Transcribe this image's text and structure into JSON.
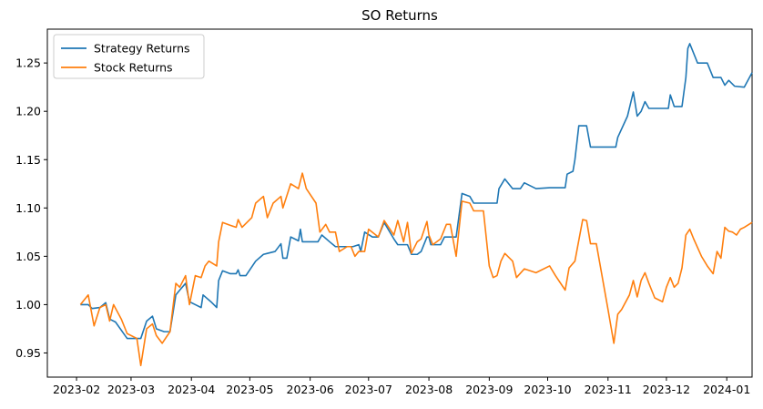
{
  "chart_data": {
    "type": "line",
    "title": "SO Returns",
    "xlabel": "",
    "ylabel": "",
    "x_range": [
      "2023-01-17",
      "2024-01-14"
    ],
    "ylim": [
      0.925,
      1.285
    ],
    "grid": false,
    "legend_position": "top-left",
    "x_ticks": [
      "2023-02",
      "2023-03",
      "2023-04",
      "2023-05",
      "2023-06",
      "2023-07",
      "2023-08",
      "2023-09",
      "2023-10",
      "2023-11",
      "2023-12",
      "2024-01"
    ],
    "y_ticks": [
      0.95,
      1.0,
      1.05,
      1.1,
      1.15,
      1.2,
      1.25
    ],
    "y_tick_labels": [
      "0.95",
      "1.00",
      "1.05",
      "1.10",
      "1.15",
      "1.20",
      "1.25"
    ],
    "series": [
      {
        "name": "Strategy Returns",
        "color": "#1f77b4",
        "points": [
          [
            "2023-02-03",
            1.0
          ],
          [
            "2023-02-07",
            1.0
          ],
          [
            "2023-02-09",
            0.996
          ],
          [
            "2023-02-13",
            0.997
          ],
          [
            "2023-02-16",
            1.002
          ],
          [
            "2023-02-18",
            0.985
          ],
          [
            "2023-02-21",
            0.982
          ],
          [
            "2023-02-27",
            0.965
          ],
          [
            "2023-03-06",
            0.965
          ],
          [
            "2023-03-09",
            0.983
          ],
          [
            "2023-03-12",
            0.988
          ],
          [
            "2023-03-14",
            0.975
          ],
          [
            "2023-03-18",
            0.972
          ],
          [
            "2023-03-21",
            0.972
          ],
          [
            "2023-03-24",
            1.01
          ],
          [
            "2023-03-26",
            1.015
          ],
          [
            "2023-03-29",
            1.022
          ],
          [
            "2023-03-31",
            1.003
          ],
          [
            "2023-04-03",
            1.0
          ],
          [
            "2023-04-06",
            0.997
          ],
          [
            "2023-04-07",
            1.01
          ],
          [
            "2023-04-11",
            1.003
          ],
          [
            "2023-04-14",
            0.997
          ],
          [
            "2023-04-15",
            1.025
          ],
          [
            "2023-04-17",
            1.035
          ],
          [
            "2023-04-21",
            1.032
          ],
          [
            "2023-04-24",
            1.032
          ],
          [
            "2023-04-25",
            1.036
          ],
          [
            "2023-04-26",
            1.03
          ],
          [
            "2023-04-29",
            1.03
          ],
          [
            "2023-05-04",
            1.045
          ],
          [
            "2023-05-08",
            1.052
          ],
          [
            "2023-05-10",
            1.053
          ],
          [
            "2023-05-14",
            1.055
          ],
          [
            "2023-05-17",
            1.063
          ],
          [
            "2023-05-18",
            1.048
          ],
          [
            "2023-05-20",
            1.048
          ],
          [
            "2023-05-22",
            1.07
          ],
          [
            "2023-05-26",
            1.066
          ],
          [
            "2023-05-27",
            1.078
          ],
          [
            "2023-05-28",
            1.065
          ],
          [
            "2023-06-05",
            1.065
          ],
          [
            "2023-06-07",
            1.072
          ],
          [
            "2023-06-11",
            1.065
          ],
          [
            "2023-06-14",
            1.06
          ],
          [
            "2023-06-23",
            1.06
          ],
          [
            "2023-06-26",
            1.062
          ],
          [
            "2023-06-27",
            1.055
          ],
          [
            "2023-06-28",
            1.065
          ],
          [
            "2023-06-29",
            1.075
          ],
          [
            "2023-07-03",
            1.07
          ],
          [
            "2023-07-06",
            1.07
          ],
          [
            "2023-07-09",
            1.085
          ],
          [
            "2023-07-14",
            1.068
          ],
          [
            "2023-07-16",
            1.062
          ],
          [
            "2023-07-21",
            1.062
          ],
          [
            "2023-07-23",
            1.052
          ],
          [
            "2023-07-26",
            1.052
          ],
          [
            "2023-07-28",
            1.055
          ],
          [
            "2023-07-31",
            1.07
          ],
          [
            "2023-08-01",
            1.07
          ],
          [
            "2023-08-02",
            1.062
          ],
          [
            "2023-08-07",
            1.062
          ],
          [
            "2023-08-09",
            1.07
          ],
          [
            "2023-08-15",
            1.07
          ],
          [
            "2023-08-18",
            1.115
          ],
          [
            "2023-08-22",
            1.112
          ],
          [
            "2023-08-24",
            1.105
          ],
          [
            "2023-09-05",
            1.105
          ],
          [
            "2023-09-06",
            1.12
          ],
          [
            "2023-09-09",
            1.13
          ],
          [
            "2023-09-13",
            1.12
          ],
          [
            "2023-09-17",
            1.12
          ],
          [
            "2023-09-19",
            1.126
          ],
          [
            "2023-09-25",
            1.12
          ],
          [
            "2023-10-02",
            1.121
          ],
          [
            "2023-10-10",
            1.121
          ],
          [
            "2023-10-11",
            1.135
          ],
          [
            "2023-10-14",
            1.138
          ],
          [
            "2023-10-15",
            1.15
          ],
          [
            "2023-10-17",
            1.185
          ],
          [
            "2023-10-21",
            1.185
          ],
          [
            "2023-10-23",
            1.163
          ],
          [
            "2023-11-05",
            1.163
          ],
          [
            "2023-11-06",
            1.173
          ],
          [
            "2023-11-11",
            1.195
          ],
          [
            "2023-11-14",
            1.22
          ],
          [
            "2023-11-16",
            1.195
          ],
          [
            "2023-11-18",
            1.2
          ],
          [
            "2023-11-20",
            1.21
          ],
          [
            "2023-11-22",
            1.203
          ],
          [
            "2023-12-02",
            1.203
          ],
          [
            "2023-12-03",
            1.217
          ],
          [
            "2023-12-05",
            1.205
          ],
          [
            "2023-12-09",
            1.205
          ],
          [
            "2023-12-11",
            1.235
          ],
          [
            "2023-12-12",
            1.265
          ],
          [
            "2023-12-13",
            1.27
          ],
          [
            "2023-12-17",
            1.25
          ],
          [
            "2023-12-22",
            1.25
          ],
          [
            "2023-12-25",
            1.235
          ],
          [
            "2023-12-29",
            1.235
          ],
          [
            "2023-12-31",
            1.227
          ],
          [
            "2024-01-02",
            1.232
          ],
          [
            "2024-01-05",
            1.226
          ],
          [
            "2024-01-10",
            1.225
          ],
          [
            "2024-01-14",
            1.24
          ]
        ]
      },
      {
        "name": "Stock Returns",
        "color": "#ff7f0e",
        "points": [
          [
            "2023-02-03",
            1.0
          ],
          [
            "2023-02-07",
            1.01
          ],
          [
            "2023-02-10",
            0.978
          ],
          [
            "2023-02-13",
            0.997
          ],
          [
            "2023-02-16",
            1.0
          ],
          [
            "2023-02-18",
            0.983
          ],
          [
            "2023-02-20",
            1.0
          ],
          [
            "2023-02-24",
            0.985
          ],
          [
            "2023-02-27",
            0.97
          ],
          [
            "2023-03-04",
            0.965
          ],
          [
            "2023-03-06",
            0.937
          ],
          [
            "2023-03-09",
            0.975
          ],
          [
            "2023-03-12",
            0.98
          ],
          [
            "2023-03-14",
            0.968
          ],
          [
            "2023-03-17",
            0.96
          ],
          [
            "2023-03-21",
            0.972
          ],
          [
            "2023-03-24",
            1.022
          ],
          [
            "2023-03-26",
            1.018
          ],
          [
            "2023-03-29",
            1.03
          ],
          [
            "2023-03-31",
            1.0
          ],
          [
            "2023-04-03",
            1.03
          ],
          [
            "2023-04-06",
            1.028
          ],
          [
            "2023-04-08",
            1.04
          ],
          [
            "2023-04-10",
            1.045
          ],
          [
            "2023-04-14",
            1.04
          ],
          [
            "2023-04-15",
            1.065
          ],
          [
            "2023-04-17",
            1.085
          ],
          [
            "2023-04-21",
            1.082
          ],
          [
            "2023-04-24",
            1.08
          ],
          [
            "2023-04-25",
            1.088
          ],
          [
            "2023-04-27",
            1.08
          ],
          [
            "2023-05-02",
            1.09
          ],
          [
            "2023-05-04",
            1.105
          ],
          [
            "2023-05-08",
            1.112
          ],
          [
            "2023-05-10",
            1.09
          ],
          [
            "2023-05-13",
            1.105
          ],
          [
            "2023-05-17",
            1.112
          ],
          [
            "2023-05-18",
            1.1
          ],
          [
            "2023-05-22",
            1.125
          ],
          [
            "2023-05-26",
            1.12
          ],
          [
            "2023-05-28",
            1.136
          ],
          [
            "2023-05-30",
            1.12
          ],
          [
            "2023-06-04",
            1.105
          ],
          [
            "2023-06-06",
            1.075
          ],
          [
            "2023-06-09",
            1.083
          ],
          [
            "2023-06-11",
            1.075
          ],
          [
            "2023-06-14",
            1.075
          ],
          [
            "2023-06-16",
            1.055
          ],
          [
            "2023-06-20",
            1.06
          ],
          [
            "2023-06-22",
            1.06
          ],
          [
            "2023-06-24",
            1.05
          ],
          [
            "2023-06-26",
            1.055
          ],
          [
            "2023-06-29",
            1.055
          ],
          [
            "2023-07-01",
            1.078
          ],
          [
            "2023-07-06",
            1.07
          ],
          [
            "2023-07-09",
            1.087
          ],
          [
            "2023-07-14",
            1.072
          ],
          [
            "2023-07-16",
            1.087
          ],
          [
            "2023-07-19",
            1.065
          ],
          [
            "2023-07-21",
            1.085
          ],
          [
            "2023-07-23",
            1.053
          ],
          [
            "2023-07-26",
            1.065
          ],
          [
            "2023-07-28",
            1.068
          ],
          [
            "2023-07-31",
            1.086
          ],
          [
            "2023-08-01",
            1.072
          ],
          [
            "2023-08-03",
            1.062
          ],
          [
            "2023-08-07",
            1.068
          ],
          [
            "2023-08-10",
            1.083
          ],
          [
            "2023-08-12",
            1.083
          ],
          [
            "2023-08-15",
            1.05
          ],
          [
            "2023-08-18",
            1.107
          ],
          [
            "2023-08-22",
            1.105
          ],
          [
            "2023-08-24",
            1.097
          ],
          [
            "2023-08-29",
            1.097
          ],
          [
            "2023-09-01",
            1.04
          ],
          [
            "2023-09-03",
            1.028
          ],
          [
            "2023-09-05",
            1.03
          ],
          [
            "2023-09-07",
            1.045
          ],
          [
            "2023-09-09",
            1.053
          ],
          [
            "2023-09-13",
            1.045
          ],
          [
            "2023-09-15",
            1.028
          ],
          [
            "2023-09-19",
            1.037
          ],
          [
            "2023-09-22",
            1.035
          ],
          [
            "2023-09-25",
            1.033
          ],
          [
            "2023-10-02",
            1.04
          ],
          [
            "2023-10-05",
            1.03
          ],
          [
            "2023-10-10",
            1.015
          ],
          [
            "2023-10-12",
            1.038
          ],
          [
            "2023-10-15",
            1.045
          ],
          [
            "2023-10-19",
            1.088
          ],
          [
            "2023-10-21",
            1.087
          ],
          [
            "2023-10-23",
            1.063
          ],
          [
            "2023-10-26",
            1.063
          ],
          [
            "2023-11-01",
            0.995
          ],
          [
            "2023-11-04",
            0.96
          ],
          [
            "2023-11-06",
            0.99
          ],
          [
            "2023-11-08",
            0.995
          ],
          [
            "2023-11-12",
            1.01
          ],
          [
            "2023-11-14",
            1.025
          ],
          [
            "2023-11-16",
            1.008
          ],
          [
            "2023-11-18",
            1.025
          ],
          [
            "2023-11-20",
            1.033
          ],
          [
            "2023-11-22",
            1.022
          ],
          [
            "2023-11-25",
            1.007
          ],
          [
            "2023-11-29",
            1.003
          ],
          [
            "2023-12-01",
            1.018
          ],
          [
            "2023-12-03",
            1.028
          ],
          [
            "2023-12-05",
            1.018
          ],
          [
            "2023-12-07",
            1.022
          ],
          [
            "2023-12-09",
            1.038
          ],
          [
            "2023-12-11",
            1.072
          ],
          [
            "2023-12-13",
            1.078
          ],
          [
            "2023-12-15",
            1.068
          ],
          [
            "2023-12-19",
            1.05
          ],
          [
            "2023-12-22",
            1.04
          ],
          [
            "2023-12-25",
            1.032
          ],
          [
            "2023-12-27",
            1.055
          ],
          [
            "2023-12-29",
            1.048
          ],
          [
            "2023-12-31",
            1.08
          ],
          [
            "2024-01-02",
            1.076
          ],
          [
            "2024-01-04",
            1.075
          ],
          [
            "2024-01-06",
            1.072
          ],
          [
            "2024-01-08",
            1.078
          ],
          [
            "2024-01-10",
            1.08
          ],
          [
            "2024-01-14",
            1.085
          ]
        ]
      }
    ]
  }
}
